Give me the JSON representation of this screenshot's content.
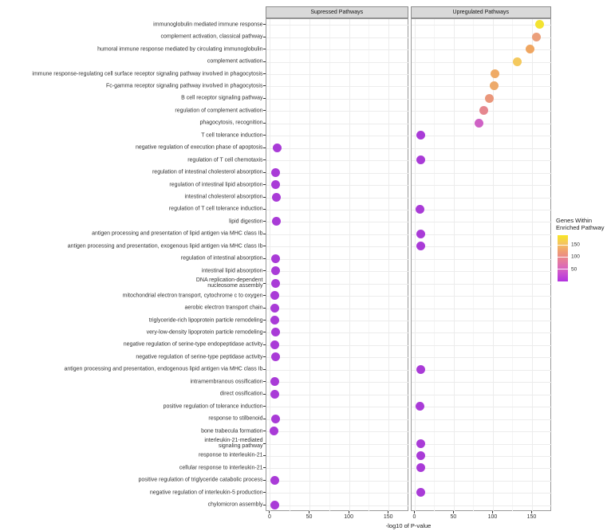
{
  "chart_data": {
    "type": "scatter",
    "subtype": "faceted-dot-plot",
    "facets": [
      "Supressed Pathways",
      "Upregulated Pathways"
    ],
    "xlabel": "-log10 of P-value",
    "x_ticks": [
      0,
      50,
      100,
      150
    ],
    "x_minor_ticks": [
      25,
      75,
      125
    ],
    "xlim": [
      -5,
      175
    ],
    "grid": "on",
    "dot_color_default": "#a93bd7",
    "legend": {
      "title_lines": [
        "Genes Within",
        "Enriched Pathway"
      ],
      "position": "right",
      "domain": [
        0,
        190
      ],
      "ticks": [
        150,
        100,
        50
      ],
      "gradient_top_to_bottom": [
        "#f8e622",
        "#f5c75c",
        "#f0a06f",
        "#e9838f",
        "#dd6cb5",
        "#c94fd0",
        "#b233e0"
      ]
    },
    "points": [
      {
        "pathway": "immunoglobulin mediated immune response",
        "facet": 1,
        "x": 160,
        "color": "#f3e331"
      },
      {
        "pathway": "complement activation, classical pathway",
        "facet": 1,
        "x": 156,
        "color": "#eb9f7b"
      },
      {
        "pathway": "humoral immune response mediated by circulating immunoglobulin",
        "facet": 1,
        "x": 148,
        "color": "#efa661"
      },
      {
        "pathway": "complement activation",
        "facet": 1,
        "x": 132,
        "color": "#f4c95e"
      },
      {
        "pathway": "immune response-regulating cell surface receptor signaling pathway involved in phagocytosis",
        "facet": 1,
        "x": 103,
        "color": "#efab66"
      },
      {
        "pathway": "Fc-gamma receptor signaling pathway involved in phagocytosis",
        "facet": 1,
        "x": 102,
        "color": "#edaa6b"
      },
      {
        "pathway": "B cell receptor signaling pathway",
        "facet": 1,
        "x": 96,
        "color": "#ea977b"
      },
      {
        "pathway": "regulation of complement activation",
        "facet": 1,
        "x": 89,
        "color": "#e5878f"
      },
      {
        "pathway": "phagocytosis, recognition",
        "facet": 1,
        "x": 83,
        "color": "#cf62c5"
      },
      {
        "pathway": "T cell tolerance induction",
        "facet": 1,
        "x": 8,
        "color": "#a93bd7"
      },
      {
        "pathway": "negative regulation of execution phase of apoptosis",
        "facet": 0,
        "x": 10,
        "color": "#a93bd7"
      },
      {
        "pathway": "regulation of T cell chemotaxis",
        "facet": 1,
        "x": 8,
        "color": "#a93bd7"
      },
      {
        "pathway": "regulation of intestinal cholesterol absorption",
        "facet": 0,
        "x": 8,
        "color": "#a93bd7"
      },
      {
        "pathway": "regulation of intestinal lipid absorption",
        "facet": 0,
        "x": 8,
        "color": "#a93bd7"
      },
      {
        "pathway": "intestinal cholesterol absorption",
        "facet": 0,
        "x": 9,
        "color": "#a93bd7"
      },
      {
        "pathway": "regulation of T cell tolerance induction",
        "facet": 1,
        "x": 7,
        "color": "#a93bd7"
      },
      {
        "pathway": "lipid digestion",
        "facet": 0,
        "x": 9,
        "color": "#a93bd7"
      },
      {
        "pathway": "antigen processing and presentation of lipid antigen via MHC class Ib",
        "facet": 1,
        "x": 8,
        "color": "#a93bd7"
      },
      {
        "pathway": "antigen processing and presentation, exogenous lipid antigen via MHC class Ib",
        "facet": 1,
        "x": 8,
        "color": "#a93bd7"
      },
      {
        "pathway": "regulation of intestinal absorption",
        "facet": 0,
        "x": 8,
        "color": "#a93bd7"
      },
      {
        "pathway": "intestinal lipid absorption",
        "facet": 0,
        "x": 8,
        "color": "#a93bd7"
      },
      {
        "pathway": "DNA replication-dependent\nnucleosome assembly",
        "facet": 0,
        "x": 8,
        "color": "#a93bd7"
      },
      {
        "pathway": "mitochondrial electron transport, cytochrome c to oxygen",
        "facet": 0,
        "x": 7,
        "color": "#a93bd7"
      },
      {
        "pathway": "aerobic electron transport chain",
        "facet": 0,
        "x": 7,
        "color": "#a93bd7"
      },
      {
        "pathway": "triglyceride-rich lipoprotein particle remodeling",
        "facet": 0,
        "x": 7,
        "color": "#a93bd7"
      },
      {
        "pathway": "very-low-density lipoprotein particle remodeling",
        "facet": 0,
        "x": 8,
        "color": "#a93bd7"
      },
      {
        "pathway": "negative regulation of serine-type endopeptidase activity",
        "facet": 0,
        "x": 7,
        "color": "#a93bd7"
      },
      {
        "pathway": "negative regulation of serine-type peptidase activity",
        "facet": 0,
        "x": 8,
        "color": "#a93bd7"
      },
      {
        "pathway": "antigen processing and presentation, endogenous lipid antigen via MHC class Ib",
        "facet": 1,
        "x": 8,
        "color": "#a93bd7"
      },
      {
        "pathway": "intramembranous ossification",
        "facet": 0,
        "x": 7,
        "color": "#a93bd7"
      },
      {
        "pathway": "direct ossification",
        "facet": 0,
        "x": 7,
        "color": "#a93bd7"
      },
      {
        "pathway": "positive regulation of tolerance induction",
        "facet": 1,
        "x": 7,
        "color": "#a93bd7"
      },
      {
        "pathway": "response to stilbenoid",
        "facet": 0,
        "x": 8,
        "color": "#a93bd7"
      },
      {
        "pathway": "bone trabecula formation",
        "facet": 0,
        "x": 6,
        "color": "#a93bd7"
      },
      {
        "pathway": "interleukin-21-mediated\nsignaling pathway",
        "facet": 1,
        "x": 8,
        "color": "#a93bd7"
      },
      {
        "pathway": "response to interleukin-21",
        "facet": 1,
        "x": 8,
        "color": "#a93bd7"
      },
      {
        "pathway": "cellular response to interleukin-21",
        "facet": 1,
        "x": 8,
        "color": "#a93bd7"
      },
      {
        "pathway": "positive regulation of triglyceride catabolic process",
        "facet": 0,
        "x": 7,
        "color": "#a93bd7"
      },
      {
        "pathway": "negative regulation of interleukin-5 production",
        "facet": 1,
        "x": 8,
        "color": "#a93bd7"
      },
      {
        "pathway": "chylomicron assembly",
        "facet": 0,
        "x": 7,
        "color": "#a93bd7"
      }
    ]
  }
}
